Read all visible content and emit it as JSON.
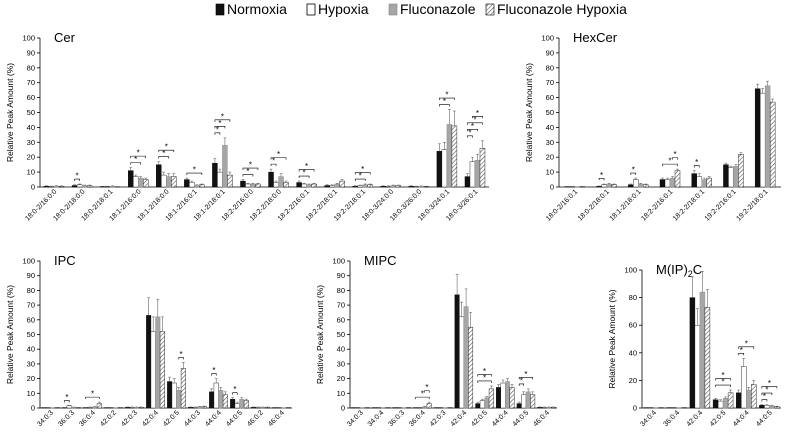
{
  "legend": {
    "entries": [
      {
        "label": "Normoxia",
        "swatch": "normoxia"
      },
      {
        "label": "Hypoxia",
        "swatch": "hypoxia"
      },
      {
        "label": "Fluconazole",
        "swatch": "fluconazole"
      },
      {
        "label": "Fluconazole Hypoxia",
        "swatch": "fluconazole-hypoxia"
      }
    ]
  },
  "colors": {
    "normoxia": "#111111",
    "hypoxia": "#ffffff",
    "fluconazole": "#a6a6a6",
    "fluconazole_hypoxia_stripe": "#555555",
    "axis": "#000000",
    "error_bar": "#666666",
    "significance": "#000000"
  },
  "chart_data": [
    {
      "type": "bar",
      "title": "Cer",
      "ylabel": "Relative Peak Amount (%)",
      "ylim": [
        0,
        100
      ],
      "yticks": [
        0,
        10,
        20,
        30,
        40,
        50,
        60,
        70,
        80,
        90,
        100
      ],
      "categories": [
        "18:0-2/16:0:0",
        "18:0-2/18:0:0",
        "18:0-2/18:0:1",
        "18:1-2/16:0:0",
        "18:1-2/18:0:0",
        "18:1-2/16:0:1",
        "18:1-2/18:0:1",
        "18:2-2/16:0:0",
        "18:2-2/18:0:0",
        "18:2-2/16:0:1",
        "18:2-2/18:0:1",
        "19:2-2/18:0:1",
        "18:0-3/24:0:0",
        "18:0-3/26:0:0",
        "18:0-3/24:0:1",
        "18:0-3/26:0:1"
      ],
      "series": [
        {
          "name": "Normoxia",
          "values": [
            0.5,
            1,
            0.3,
            11,
            15,
            5,
            16,
            4,
            10,
            3,
            1,
            0.5,
            0.5,
            0.5,
            24,
            7
          ],
          "errors": [
            0.3,
            0.5,
            0.2,
            2,
            2,
            1,
            3,
            1,
            2,
            1,
            0.5,
            0.3,
            0.3,
            0.3,
            5,
            2
          ]
        },
        {
          "name": "Hypoxia",
          "values": [
            0.4,
            1.5,
            0.3,
            7,
            8,
            3,
            10,
            2,
            3,
            2,
            1,
            1,
            0.5,
            0.4,
            25,
            17
          ],
          "errors": [
            0.2,
            0.5,
            0.2,
            1,
            2,
            1,
            2,
            0.5,
            1,
            0.5,
            0.5,
            0.3,
            0.3,
            0.2,
            5,
            3
          ]
        },
        {
          "name": "Fluconazole",
          "values": [
            0.6,
            1,
            0.5,
            6,
            7,
            1,
            28,
            2,
            7,
            1.5,
            2,
            1.5,
            1,
            0.5,
            42,
            18
          ],
          "errors": [
            0.3,
            0.3,
            0.3,
            1,
            2,
            0.5,
            5,
            0.5,
            2,
            0.5,
            0.5,
            0.5,
            0.3,
            0.2,
            10,
            4
          ]
        },
        {
          "name": "Fluconazole Hypoxia",
          "values": [
            0.5,
            1,
            0.2,
            5,
            7,
            1.5,
            8,
            2,
            3,
            2,
            4,
            1.5,
            1,
            0.3,
            41,
            26
          ],
          "errors": [
            0.3,
            0.3,
            0.1,
            1,
            2,
            0.5,
            2,
            0.5,
            1,
            0.5,
            1,
            0.5,
            0.3,
            0.2,
            10,
            5
          ]
        }
      ],
      "significance": [
        {
          "category": 1,
          "from": 0,
          "to": 1,
          "level": 0
        },
        {
          "category": 3,
          "from": 0,
          "to": 2,
          "level": 0
        },
        {
          "category": 3,
          "from": 0,
          "to": 3,
          "level": 1
        },
        {
          "category": 4,
          "from": 0,
          "to": 2,
          "level": 0
        },
        {
          "category": 4,
          "from": 0,
          "to": 3,
          "level": 1
        },
        {
          "category": 5,
          "from": 0,
          "to": 3,
          "level": 0
        },
        {
          "category": 6,
          "from": 0,
          "to": 1,
          "level": 0
        },
        {
          "category": 6,
          "from": 0,
          "to": 2,
          "level": 1
        },
        {
          "category": 6,
          "from": 0,
          "to": 3,
          "level": 2
        },
        {
          "category": 7,
          "from": 0,
          "to": 2,
          "level": 0
        },
        {
          "category": 7,
          "from": 0,
          "to": 3,
          "level": 1
        },
        {
          "category": 8,
          "from": 0,
          "to": 1,
          "level": 0
        },
        {
          "category": 8,
          "from": 0,
          "to": 3,
          "level": 1
        },
        {
          "category": 9,
          "from": 0,
          "to": 2,
          "level": 0
        },
        {
          "category": 9,
          "from": 0,
          "to": 3,
          "level": 1
        },
        {
          "category": 11,
          "from": 0,
          "to": 2,
          "level": 0
        },
        {
          "category": 11,
          "from": 0,
          "to": 3,
          "level": 1
        },
        {
          "category": 14,
          "from": 0,
          "to": 2,
          "level": 0
        },
        {
          "category": 14,
          "from": 0,
          "to": 3,
          "level": 1
        },
        {
          "category": 15,
          "from": 0,
          "to": 1,
          "level": 0
        },
        {
          "category": 15,
          "from": 0,
          "to": 2,
          "level": 1
        },
        {
          "category": 15,
          "from": 0,
          "to": 3,
          "level": 2
        },
        {
          "category": 15,
          "from": 1,
          "to": 3,
          "level": 3
        }
      ]
    },
    {
      "type": "bar",
      "title": "HexCer",
      "ylabel": "Relative Peak Amount (%)",
      "ylim": [
        0,
        100
      ],
      "yticks": [
        0,
        10,
        20,
        30,
        40,
        50,
        60,
        70,
        80,
        90,
        100
      ],
      "categories": [
        "18:0-2/16:0:1",
        "18:0-2/18:0:1",
        "18:1-2/18:0:1",
        "18:2-2/16:0:1",
        "18:2-2/18:0:1",
        "19:2-2/16:0:1",
        "19:2-2/18:0:1"
      ],
      "series": [
        {
          "name": "Normoxia",
          "values": [
            0.3,
            0.5,
            1.5,
            5,
            9,
            15,
            66
          ],
          "errors": [
            0.1,
            0.2,
            0.5,
            1,
            2,
            1,
            3
          ]
        },
        {
          "name": "Hypoxia",
          "values": [
            0.3,
            1.5,
            5,
            5,
            7,
            13,
            63
          ],
          "errors": [
            0.1,
            0.5,
            1,
            1,
            2,
            1,
            3
          ]
        },
        {
          "name": "Fluconazole",
          "values": [
            0.3,
            2,
            2,
            6,
            5,
            14,
            68
          ],
          "errors": [
            0.1,
            0.5,
            0.5,
            1,
            1,
            1,
            3
          ]
        },
        {
          "name": "Fluconazole Hypoxia",
          "values": [
            0.3,
            1.5,
            1.5,
            11,
            6,
            22,
            57
          ],
          "errors": [
            0.1,
            0.5,
            0.5,
            1,
            1,
            1,
            2
          ]
        }
      ],
      "significance": [
        {
          "category": 1,
          "from": 0,
          "to": 1,
          "level": 0
        },
        {
          "category": 2,
          "from": 0,
          "to": 1,
          "level": 0
        },
        {
          "category": 3,
          "from": 0,
          "to": 3,
          "level": 0
        },
        {
          "category": 3,
          "from": 2,
          "to": 3,
          "level": 1
        },
        {
          "category": 4,
          "from": 0,
          "to": 1,
          "level": 0
        }
      ]
    },
    {
      "type": "bar",
      "title": "IPC",
      "ylabel": "Relative Peak Amount (%)",
      "ylim": [
        0,
        100
      ],
      "yticks": [
        0,
        10,
        20,
        30,
        40,
        50,
        60,
        70,
        80,
        90,
        100
      ],
      "categories": [
        "34:0:3",
        "36:0:3",
        "36:0:4",
        "42:0:2",
        "42:0:3",
        "42:0:4",
        "42:0:5",
        "44:0:3",
        "44:0:4",
        "44:0:5",
        "46:0:2",
        "46:0:4"
      ],
      "series": [
        {
          "name": "Normoxia",
          "values": [
            0.3,
            0.3,
            0.3,
            0.3,
            0.5,
            63,
            18,
            0.5,
            11,
            6,
            0.5,
            0.3
          ],
          "errors": [
            0.1,
            0.1,
            0.1,
            0.1,
            0.2,
            12,
            3,
            0.2,
            2,
            1,
            0.2,
            0.1
          ]
        },
        {
          "name": "Hypoxia",
          "values": [
            0.3,
            1.5,
            0.5,
            0.3,
            0.5,
            52,
            17,
            0.5,
            17,
            3,
            0.5,
            0.3
          ],
          "errors": [
            0.1,
            0.3,
            0.2,
            0.1,
            0.2,
            10,
            3,
            0.2,
            3,
            1,
            0.2,
            0.1
          ]
        },
        {
          "name": "Fluconazole",
          "values": [
            0.3,
            0.5,
            0.8,
            0.3,
            0.5,
            62,
            12,
            0.8,
            12,
            6,
            0.5,
            0.3
          ],
          "errors": [
            0.1,
            0.2,
            0.2,
            0.1,
            0.2,
            12,
            2,
            0.3,
            2,
            1,
            0.2,
            0.1
          ]
        },
        {
          "name": "Fluconazole Hypoxia",
          "values": [
            0.3,
            0.3,
            3,
            0.3,
            0.5,
            52,
            27,
            1,
            9,
            5,
            0.5,
            0.3
          ],
          "errors": [
            0.1,
            0.1,
            1,
            0.1,
            0.2,
            10,
            4,
            0.3,
            2,
            1,
            0.2,
            0.1
          ]
        }
      ],
      "significance": [
        {
          "category": 1,
          "from": 0,
          "to": 1,
          "level": 0
        },
        {
          "category": 2,
          "from": 0,
          "to": 3,
          "level": 0
        },
        {
          "category": 6,
          "from": 2,
          "to": 3,
          "level": 0
        },
        {
          "category": 8,
          "from": 0,
          "to": 1,
          "level": 0
        },
        {
          "category": 9,
          "from": 0,
          "to": 1,
          "level": 0
        }
      ]
    },
    {
      "type": "bar",
      "title": "MIPC",
      "ylabel": "Relative Peak Amount (%)",
      "ylim": [
        0,
        100
      ],
      "yticks": [
        0,
        10,
        20,
        30,
        40,
        50,
        60,
        70,
        80,
        90,
        100
      ],
      "categories": [
        "34:0:3",
        "34:0:4",
        "36:0:3",
        "36:0:4",
        "42:0:3",
        "42:0:4",
        "42:0:5",
        "44:0:4",
        "44:0:5",
        "46:0:4"
      ],
      "series": [
        {
          "name": "Normoxia",
          "values": [
            0.3,
            0.3,
            0.3,
            0.3,
            0.3,
            77,
            3,
            14,
            3,
            0.5
          ],
          "errors": [
            0.1,
            0.1,
            0.1,
            0.1,
            0.1,
            14,
            1,
            2,
            1,
            0.2
          ]
        },
        {
          "name": "Hypoxia",
          "values": [
            0.3,
            0.3,
            0.3,
            0.3,
            0.3,
            62,
            5,
            17,
            9,
            0.5
          ],
          "errors": [
            0.1,
            0.1,
            0.1,
            0.1,
            0.1,
            10,
            1,
            2,
            2,
            0.2
          ]
        },
        {
          "name": "Fluconazole",
          "values": [
            0.3,
            0.3,
            0.3,
            0.8,
            0.3,
            69,
            7,
            18,
            11,
            0.5
          ],
          "errors": [
            0.1,
            0.1,
            0.1,
            0.3,
            0.1,
            12,
            1,
            2,
            2,
            0.2
          ]
        },
        {
          "name": "Fluconazole Hypoxia",
          "values": [
            0.3,
            0.3,
            0.3,
            3,
            0.3,
            55,
            13,
            14,
            9,
            0.5
          ],
          "errors": [
            0.1,
            0.1,
            0.1,
            1,
            0.1,
            10,
            2,
            2,
            2,
            0.2
          ]
        }
      ],
      "significance": [
        {
          "category": 3,
          "from": 0,
          "to": 3,
          "level": 0
        },
        {
          "category": 3,
          "from": 2,
          "to": 3,
          "level": 1
        },
        {
          "category": 6,
          "from": 0,
          "to": 3,
          "level": 0
        },
        {
          "category": 6,
          "from": 0,
          "to": 3,
          "level": 1
        },
        {
          "category": 8,
          "from": 0,
          "to": 1,
          "level": 0
        },
        {
          "category": 8,
          "from": 0,
          "to": 3,
          "level": 1
        }
      ]
    },
    {
      "type": "bar",
      "title": "M(IP)2C",
      "title_parts": {
        "base": "M(IP)",
        "subscript": "2",
        "tail": "C"
      },
      "ylabel": "Relative Peak Amount (%)",
      "ylim": [
        0,
        100
      ],
      "yticks": [
        0,
        20,
        40,
        60,
        80,
        100
      ],
      "categories": [
        "34:0:4",
        "36:0:4",
        "42:0:4",
        "42:0:5",
        "44:0:4",
        "44:0:5"
      ],
      "series": [
        {
          "name": "Normoxia",
          "values": [
            0.3,
            0.3,
            80,
            6,
            11,
            2
          ],
          "errors": [
            0.1,
            0.1,
            15,
            1,
            2,
            0.5
          ]
        },
        {
          "name": "Hypoxia",
          "values": [
            0.3,
            0.3,
            60,
            5,
            30,
            2
          ],
          "errors": [
            0.1,
            0.1,
            12,
            1,
            6,
            0.5
          ]
        },
        {
          "name": "Fluconazole",
          "values": [
            0.3,
            0.3,
            84,
            7,
            13,
            1.5
          ],
          "errors": [
            0.1,
            0.1,
            15,
            1,
            2,
            0.5
          ]
        },
        {
          "name": "Fluconazole Hypoxia",
          "values": [
            0.3,
            0.3,
            73,
            11,
            17,
            1
          ],
          "errors": [
            0.1,
            0.1,
            13,
            2,
            3,
            0.3
          ]
        }
      ],
      "significance": [
        {
          "category": 3,
          "from": 0,
          "to": 3,
          "level": 0
        },
        {
          "category": 3,
          "from": 0,
          "to": 3,
          "level": 1
        },
        {
          "category": 4,
          "from": 0,
          "to": 1,
          "level": 0
        },
        {
          "category": 4,
          "from": 0,
          "to": 3,
          "level": 1
        },
        {
          "category": 5,
          "from": 0,
          "to": 1,
          "level": 0
        },
        {
          "category": 5,
          "from": 0,
          "to": 2,
          "level": 1
        },
        {
          "category": 5,
          "from": 0,
          "to": 3,
          "level": 2
        }
      ]
    }
  ]
}
